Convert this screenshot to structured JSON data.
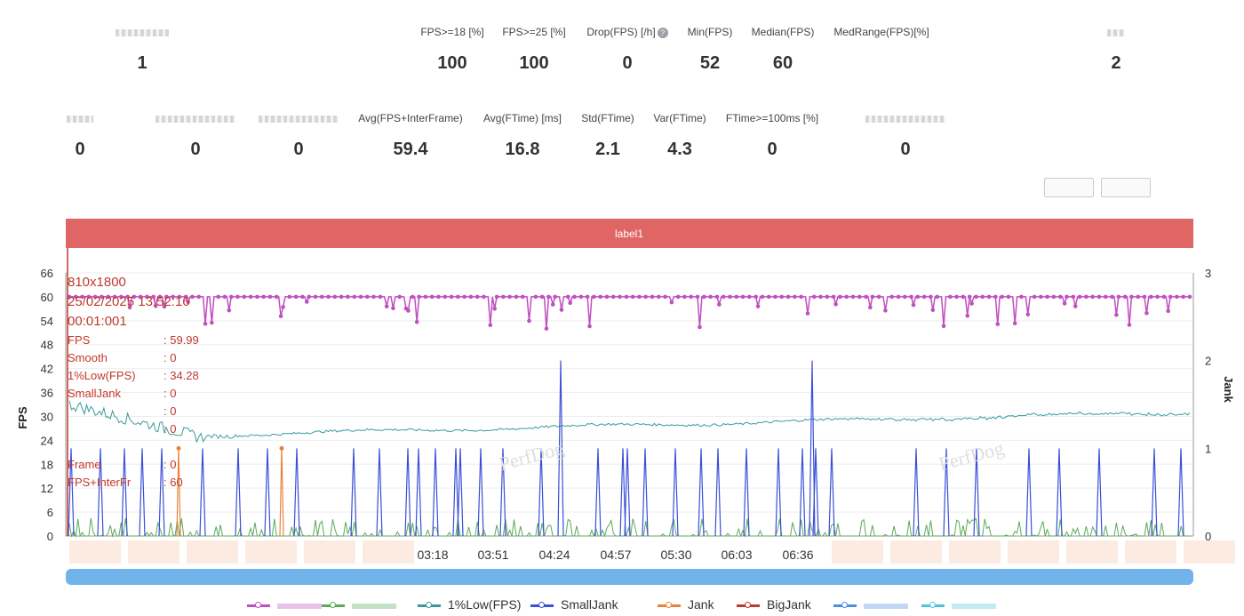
{
  "stats_row1": [
    {
      "label": "",
      "value": "1"
    },
    {
      "label": "FPS>=18 [%]",
      "value": "100"
    },
    {
      "label": "FPS>=25 [%]",
      "value": "100"
    },
    {
      "label": "Drop(FPS) [/h]",
      "value": "0",
      "help_icon": "question-circle-icon"
    },
    {
      "label": "Min(FPS)",
      "value": "52"
    },
    {
      "label": "Median(FPS)",
      "value": "60"
    },
    {
      "label": "MedRange(FPS)[%]",
      "value": ""
    },
    {
      "label": "",
      "value": "2"
    }
  ],
  "stats_row2": [
    {
      "label": "",
      "value": "0"
    },
    {
      "label": "",
      "value": "0"
    },
    {
      "label": "",
      "value": "0"
    },
    {
      "label": "Avg(FPS+InterFrame)",
      "value": "59.4"
    },
    {
      "label": "Avg(FTime) [ms]",
      "value": "16.8"
    },
    {
      "label": "Std(FTime)",
      "value": "2.1"
    },
    {
      "label": "Var(FTime)",
      "value": "4.3"
    },
    {
      "label": "FTime>=100ms [%]",
      "value": "0"
    },
    {
      "label": "",
      "value": "0"
    }
  ],
  "watermark": "PerfDog",
  "tooltip": {
    "resolution": "810x1800",
    "datetime": "25/02/2025 13:52:16",
    "elapsed": "00:01:001",
    "rows": [
      {
        "key": "FPS",
        "value": ": 59.99"
      },
      {
        "key": "Smooth",
        "value": ": 0"
      },
      {
        "key": "1%Low(FPS)",
        "value": ": 34.28"
      },
      {
        "key": "SmallJank",
        "value": ": 0"
      },
      {
        "key": "",
        "value": ": 0"
      },
      {
        "key": "",
        "value": ": 0"
      },
      {
        "key": "",
        "value": ""
      },
      {
        "key": "Frame",
        "value": ": 0"
      },
      {
        "key": "FPS+InterFr",
        "value": ": 60"
      }
    ]
  },
  "chart_data": {
    "type": "line",
    "band_label": "label1",
    "band_color": "#e06666",
    "ylabel_left": "FPS",
    "ylabel_right": "Jank",
    "ylim_left": [
      0,
      66
    ],
    "yticks_left": [
      0,
      6,
      12,
      18,
      24,
      30,
      36,
      42,
      48,
      54,
      60,
      66
    ],
    "ylim_right": [
      0,
      3
    ],
    "yticks_right": [
      0,
      1,
      2,
      3
    ],
    "x_tick_labels": [
      "03:18",
      "03:51",
      "04:24",
      "04:57",
      "05:30",
      "06:03",
      "06:36"
    ],
    "grid": "horizontal",
    "legend_position": "bottom",
    "series": [
      {
        "name": "",
        "color": "#c04fc0",
        "axis": "left",
        "kind": "fps",
        "typical": 60,
        "min": 52
      },
      {
        "name": "",
        "color": "#5aaa5a",
        "axis": "left",
        "kind": "smooth",
        "typical": 1
      },
      {
        "name": "1%Low(FPS)",
        "color": "#3a9a9a",
        "axis": "left",
        "kind": "low",
        "start": 33,
        "end": 31
      },
      {
        "name": "SmallJank",
        "color": "#3b4fd8",
        "axis": "right",
        "kind": "spikes",
        "typical": 1,
        "peaks": [
          2,
          2
        ]
      },
      {
        "name": "Jank",
        "color": "#e8833a",
        "axis": "right",
        "kind": "spikes",
        "typical": 1
      },
      {
        "name": "BigJank",
        "color": "#c0392b",
        "axis": "right",
        "kind": "flat"
      },
      {
        "name": "",
        "color": "#4a8fe0",
        "axis": "right",
        "kind": "flat"
      },
      {
        "name": "",
        "color": "#4fc3d8",
        "axis": "right",
        "kind": "flat"
      }
    ]
  }
}
